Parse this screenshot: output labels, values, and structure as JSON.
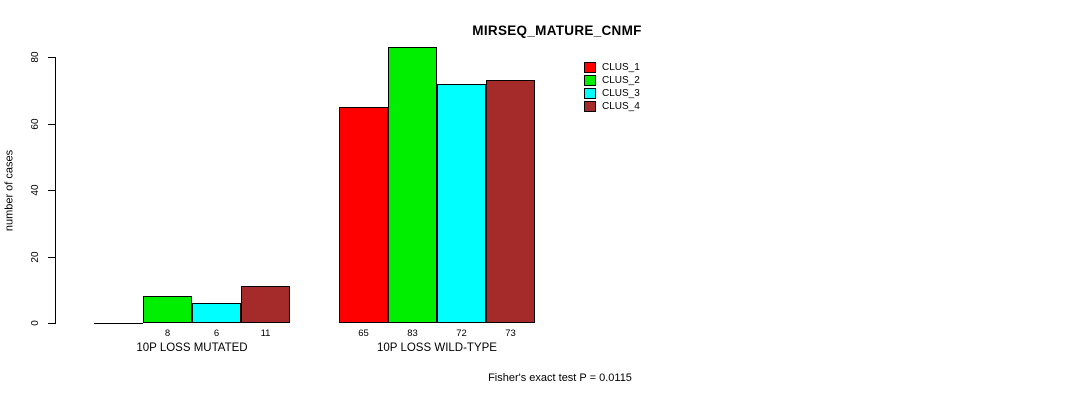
{
  "title": "MIRSEQ_MATURE_CNMF",
  "chart_data": {
    "type": "bar",
    "title": "MIRSEQ_MATURE_CNMF",
    "ylabel": "number of cases",
    "xlabel": "",
    "categories": [
      "10P LOSS MUTATED",
      "10P LOSS WILD-TYPE"
    ],
    "series": [
      {
        "name": "CLUS_1",
        "color": "#FF0000",
        "values": [
          0,
          65
        ]
      },
      {
        "name": "CLUS_2",
        "color": "#00EE00",
        "values": [
          8,
          83
        ]
      },
      {
        "name": "CLUS_3",
        "color": "#00FFFF",
        "values": [
          6,
          72
        ]
      },
      {
        "name": "CLUS_4",
        "color": "#A52A2A",
        "values": [
          11,
          73
        ]
      }
    ],
    "bar_labels": [
      [
        "",
        "8",
        "6",
        "11"
      ],
      [
        "65",
        "83",
        "72",
        "73"
      ]
    ],
    "yticks": [
      0,
      20,
      40,
      60,
      80
    ],
    "ylim": [
      0,
      85
    ],
    "grid": false,
    "legend_position": "top-right",
    "annotation": "Fisher's exact test P = 0.0115"
  }
}
